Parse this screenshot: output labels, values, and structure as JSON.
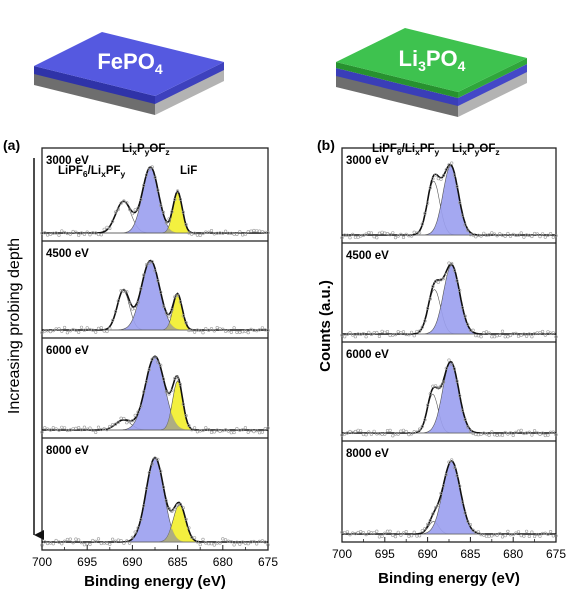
{
  "chart_data": [
    {
      "type": "line",
      "panel_label": "(a)",
      "material_label": {
        "base": "FePO",
        "sub": "4"
      },
      "xlabel": "Binding energy (eV)",
      "ylabel": "",
      "side_label": "Increasing probing depth",
      "xlim": [
        700,
        675
      ],
      "xticks": [
        700,
        695,
        690,
        685,
        680,
        675
      ],
      "peak_labels": [
        {
          "text": "LiPF6/LixPFy",
          "parts": [
            [
              "LiPF",
              ""
            ],
            [
              "6",
              "sub"
            ],
            [
              "/Li",
              ""
            ],
            [
              "x",
              "sub"
            ],
            [
              "PF",
              ""
            ],
            [
              "y",
              "sub"
            ]
          ]
        },
        {
          "text": "LixPyOFz",
          "parts": [
            [
              "Li",
              ""
            ],
            [
              "x",
              "sub"
            ],
            [
              "P",
              ""
            ],
            [
              "y",
              "sub"
            ],
            [
              "OF",
              ""
            ],
            [
              "z",
              "sub"
            ]
          ]
        },
        {
          "text": "LiF",
          "parts": [
            [
              "LiF",
              ""
            ]
          ]
        }
      ],
      "subpanels": [
        {
          "energy": "3000 eV",
          "components": [
            {
              "name": "LiPF6/LixPFy",
              "color": "#ffffff",
              "center": 691.0,
              "height": 0.42,
              "fwhm": 2.0
            },
            {
              "name": "LixPyOFz",
              "color": "#9a9ef0",
              "center": 688.0,
              "height": 0.88,
              "fwhm": 2.1
            },
            {
              "name": "LiF",
              "color": "#f2ee2a",
              "center": 685.0,
              "height": 0.55,
              "fwhm": 1.2
            }
          ]
        },
        {
          "energy": "4500 eV",
          "components": [
            {
              "name": "LiPF6/LixPFy",
              "color": "#ffffff",
              "center": 691.0,
              "height": 0.5,
              "fwhm": 1.6
            },
            {
              "name": "LixPyOFz",
              "color": "#9a9ef0",
              "center": 688.0,
              "height": 0.88,
              "fwhm": 2.4
            },
            {
              "name": "LiF",
              "color": "#f2ee2a",
              "center": 685.0,
              "height": 0.45,
              "fwhm": 1.2
            }
          ]
        },
        {
          "energy": "6000 eV",
          "components": [
            {
              "name": "LiPF6/LixPFy",
              "color": "#ffffff",
              "center": 691.0,
              "height": 0.12,
              "fwhm": 2.0
            },
            {
              "name": "LixPyOFz",
              "color": "#9a9ef0",
              "center": 687.5,
              "height": 0.9,
              "fwhm": 2.5
            },
            {
              "name": "LiF",
              "color": "#f2ee2a",
              "center": 685.0,
              "height": 0.6,
              "fwhm": 1.3
            }
          ]
        },
        {
          "energy": "8000 eV",
          "components": [
            {
              "name": "LixPyOFz",
              "color": "#9a9ef0",
              "center": 687.5,
              "height": 0.9,
              "fwhm": 2.3
            },
            {
              "name": "LiF",
              "color": "#f2ee2a",
              "center": 684.8,
              "height": 0.4,
              "fwhm": 1.6
            }
          ]
        }
      ]
    },
    {
      "type": "line",
      "panel_label": "(b)",
      "material_label": {
        "base": "Li",
        "sub": "3",
        "rest": "PO",
        "sub2": "4"
      },
      "xlabel": "Binding energy (eV)",
      "ylabel": "Counts (a.u.)",
      "xlim": [
        700,
        675
      ],
      "xticks": [
        700,
        695,
        690,
        685,
        680,
        675
      ],
      "peak_labels": [
        {
          "text": "LiPF6/LixPFy",
          "parts": [
            [
              "LiPF",
              ""
            ],
            [
              "6",
              "sub"
            ],
            [
              "/Li",
              ""
            ],
            [
              "x",
              "sub"
            ],
            [
              "PF",
              ""
            ],
            [
              "y",
              "sub"
            ]
          ]
        },
        {
          "text": "LixPyOFz",
          "parts": [
            [
              "Li",
              ""
            ],
            [
              "x",
              "sub"
            ],
            [
              "P",
              ""
            ],
            [
              "y",
              "sub"
            ],
            [
              "OF",
              ""
            ],
            [
              "z",
              "sub"
            ]
          ]
        }
      ],
      "subpanels": [
        {
          "energy": "3000 eV",
          "components": [
            {
              "name": "LiPF6/LixPFy",
              "color": "#ffffff",
              "center": 689.3,
              "height": 0.7,
              "fwhm": 1.7
            },
            {
              "name": "LixPyOFz",
              "color": "#9a9ef0",
              "center": 687.3,
              "height": 0.9,
              "fwhm": 2.1
            }
          ]
        },
        {
          "energy": "4500 eV",
          "components": [
            {
              "name": "LiPF6/LixPFy",
              "color": "#ffffff",
              "center": 689.2,
              "height": 0.55,
              "fwhm": 1.7
            },
            {
              "name": "LixPyOFz",
              "color": "#9a9ef0",
              "center": 687.2,
              "height": 0.85,
              "fwhm": 2.2
            }
          ]
        },
        {
          "energy": "6000 eV",
          "components": [
            {
              "name": "LiPF6/LixPFy",
              "color": "#ffffff",
              "center": 689.4,
              "height": 0.48,
              "fwhm": 1.5
            },
            {
              "name": "LixPyOFz",
              "color": "#9a9ef0",
              "center": 687.3,
              "height": 0.88,
              "fwhm": 2.2
            }
          ]
        },
        {
          "energy": "8000 eV",
          "components": [
            {
              "name": "LiPF6/LixPFy",
              "color": "#ffffff",
              "center": 689.3,
              "height": 0.15,
              "fwhm": 1.4
            },
            {
              "name": "LixPyOFz",
              "color": "#9a9ef0",
              "center": 687.2,
              "height": 0.88,
              "fwhm": 2.4
            }
          ]
        }
      ]
    }
  ],
  "colors": {
    "layer_top_a": "#5559e0",
    "layer_top_b": "#3ec24f",
    "layer_mid_b": "#4448c8",
    "layer_base": "#8c8c8c",
    "overlap_fill": "#9a9a9a",
    "fit_line": "#111111",
    "data_points": "#9a9a9a"
  }
}
